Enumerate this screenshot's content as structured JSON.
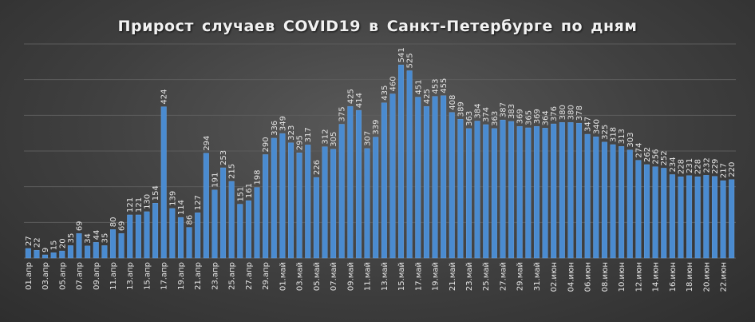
{
  "chart_data": {
    "type": "bar",
    "title": "Прирост случаев COVID19 в Санкт-Петербурге по дням",
    "xlabel": "",
    "ylabel": "",
    "ylim": [
      0,
      600
    ],
    "grid": true,
    "colors": {
      "bar": "#4a8bd0",
      "background": "#404040",
      "text": "#e6e6e6"
    },
    "tick_labels": [
      "01.апр",
      "03.апр",
      "05.апр",
      "07.апр",
      "09.апр",
      "11.апр",
      "13.апр",
      "15.апр",
      "17.апр",
      "19.апр",
      "21.апр",
      "23.апр",
      "25.апр",
      "27.апр",
      "29.апр",
      "01.май",
      "03.май",
      "05.май",
      "07.май",
      "09.май",
      "11.май",
      "13.май",
      "15.май",
      "17.май",
      "19.май",
      "21.май",
      "23.май",
      "25.май",
      "27.май",
      "29.май",
      "31.май",
      "02.июн",
      "04.июн",
      "06.июн",
      "08.июн",
      "10.июн",
      "12.июн",
      "14.июн",
      "16.июн",
      "18.июн",
      "20.июн",
      "22.июн"
    ],
    "values": [
      27,
      22,
      9,
      15,
      20,
      35,
      69,
      34,
      44,
      35,
      80,
      69,
      121,
      121,
      130,
      154,
      424,
      139,
      114,
      86,
      127,
      294,
      191,
      253,
      215,
      151,
      161,
      198,
      290,
      336,
      349,
      323,
      295,
      317,
      226,
      312,
      305,
      375,
      425,
      414,
      307,
      339,
      435,
      460,
      541,
      525,
      451,
      425,
      453,
      455,
      408,
      389,
      363,
      384,
      374,
      363,
      387,
      383,
      369,
      365,
      369,
      364,
      376,
      380,
      380,
      378,
      347,
      340,
      325,
      318,
      313,
      303,
      274,
      262,
      256,
      252,
      234,
      228,
      231,
      228,
      232,
      229,
      217,
      220
    ]
  }
}
